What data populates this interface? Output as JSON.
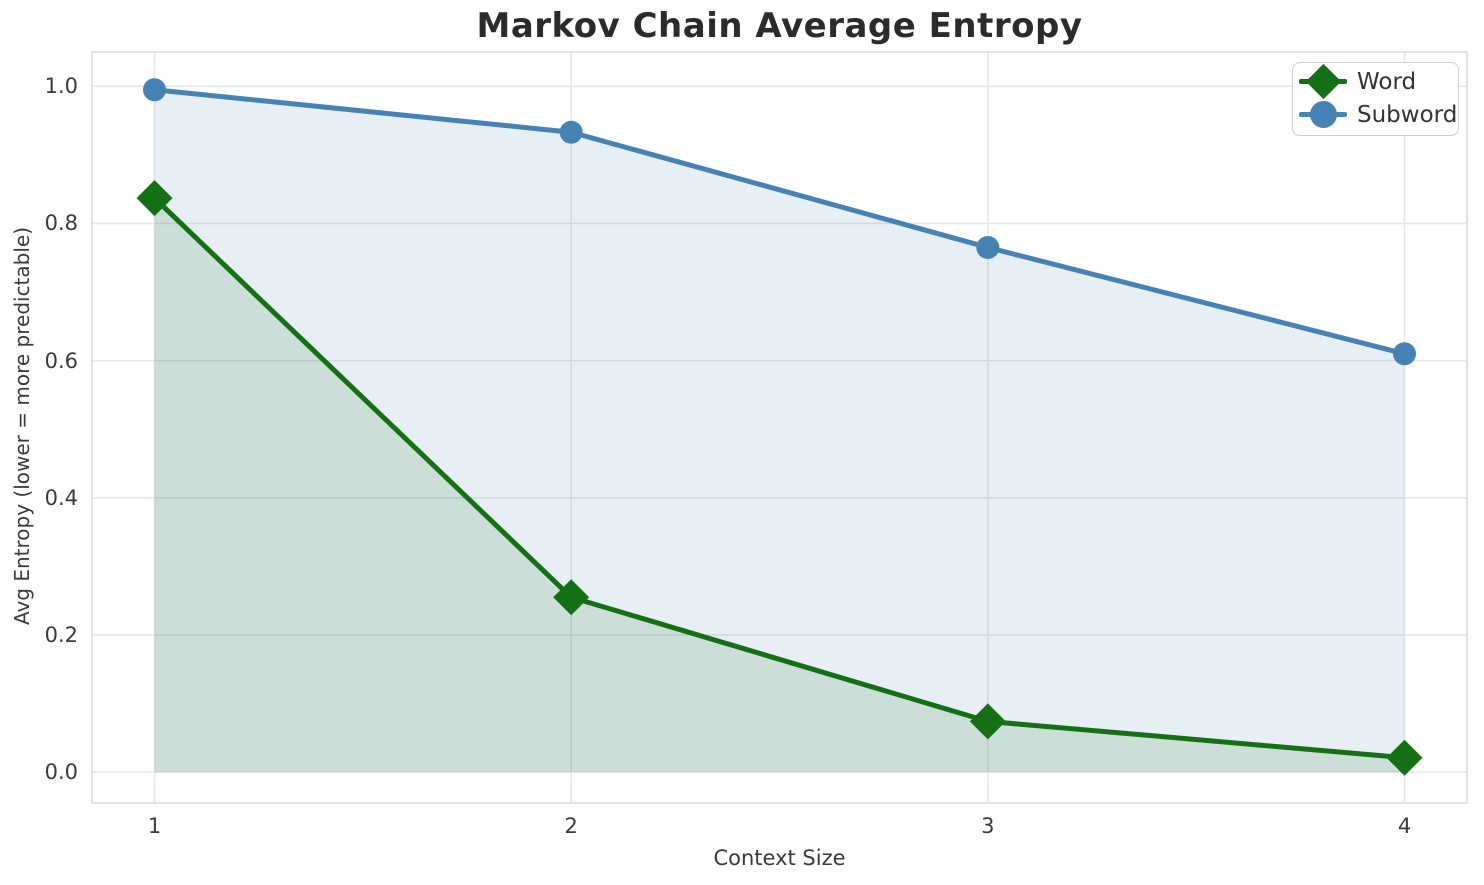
{
  "chart_data": {
    "type": "line",
    "title": "Markov Chain Average Entropy",
    "xlabel": "Context Size",
    "ylabel": "Avg Entropy (lower = more predictable)",
    "x": [
      1,
      2,
      3,
      4
    ],
    "series": [
      {
        "name": "Word",
        "marker": "diamond",
        "color": "#156f15",
        "fill_opacity": 0.13,
        "fill_to_zero": true,
        "values": [
          0.837,
          0.255,
          0.074,
          0.021
        ]
      },
      {
        "name": "Subword",
        "marker": "circle",
        "color": "#4682b4",
        "fill_opacity": 0.13,
        "fill_to_zero": true,
        "values": [
          0.995,
          0.933,
          0.765,
          0.61
        ]
      }
    ],
    "xticks": [
      "1",
      "2",
      "3",
      "4"
    ],
    "yticks": [
      "0.0",
      "0.2",
      "0.4",
      "0.6",
      "0.8",
      "1.0"
    ],
    "ytick_values": [
      0.0,
      0.2,
      0.4,
      0.6,
      0.8,
      1.0
    ],
    "xlim": [
      0.85,
      4.15
    ],
    "ylim": [
      -0.045,
      1.05
    ],
    "grid": true,
    "legend_position": "upper right",
    "grid_color": "#e7e7e7",
    "spine_color": "#dcdcdc",
    "text_color": "#3a3a3a"
  }
}
